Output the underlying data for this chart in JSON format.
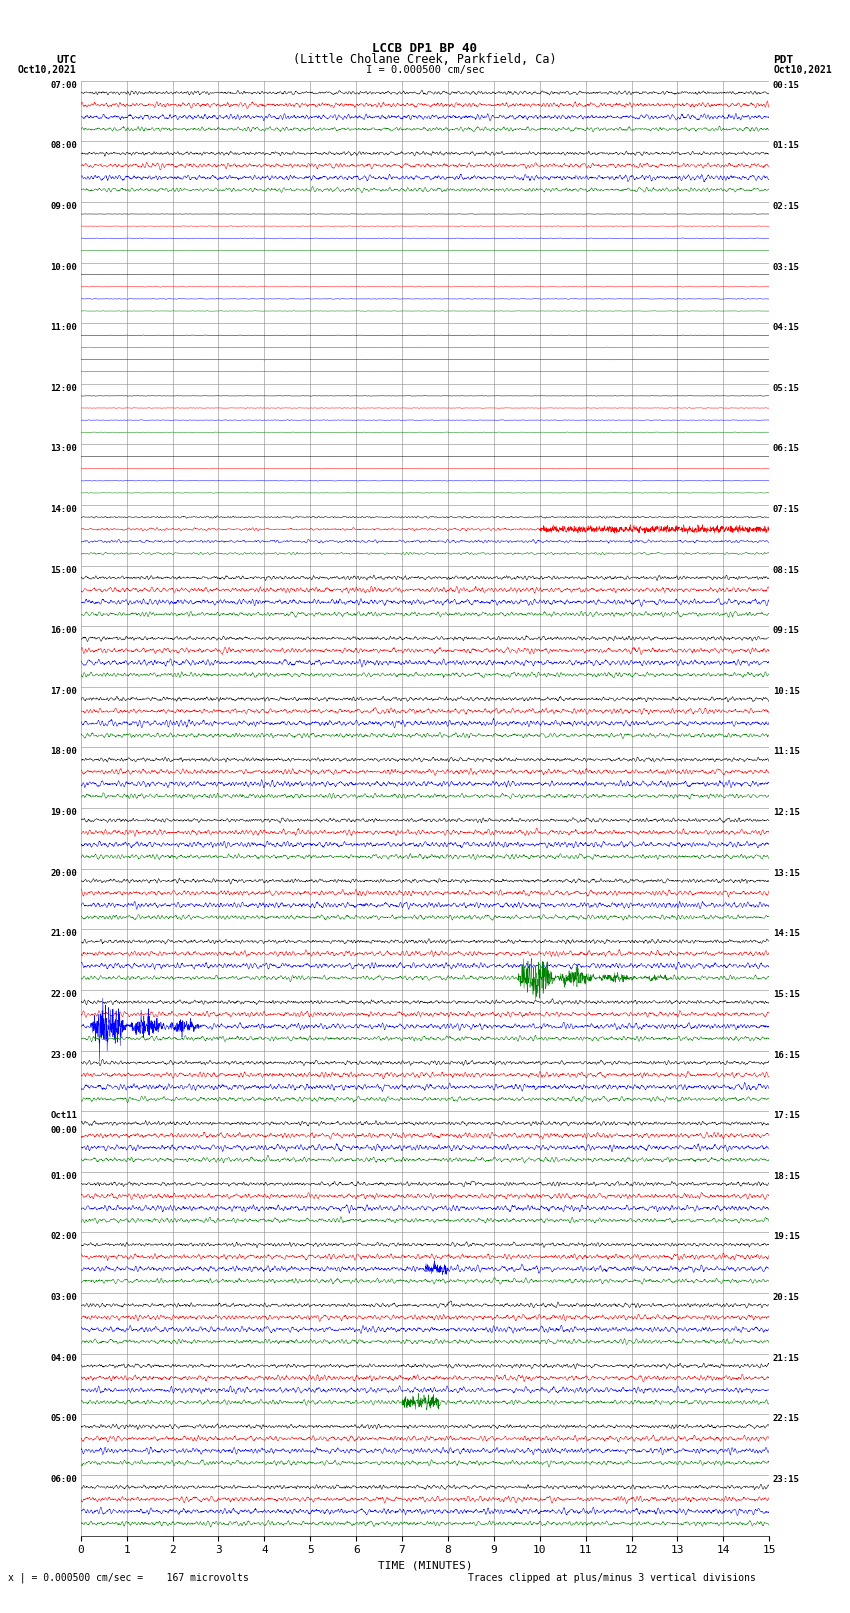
{
  "title_line1": "LCCB DP1 BP 40",
  "title_line2": "(Little Cholane Creek, Parkfield, Ca)",
  "scale_text": "I = 0.000500 cm/sec",
  "left_label_top": "UTC",
  "left_label_bot": "Oct10,2021",
  "right_label_top": "PDT",
  "right_label_bot": "Oct10,2021",
  "bottom_label": "TIME (MINUTES)",
  "footnote_left": "x | = 0.000500 cm/sec =    167 microvolts",
  "footnote_right": "Traces clipped at plus/minus 3 vertical divisions",
  "utc_times": [
    "07:00",
    "08:00",
    "09:00",
    "10:00",
    "11:00",
    "12:00",
    "13:00",
    "14:00",
    "15:00",
    "16:00",
    "17:00",
    "18:00",
    "19:00",
    "20:00",
    "21:00",
    "22:00",
    "23:00",
    "Oct11\n00:00",
    "01:00",
    "02:00",
    "03:00",
    "04:00",
    "05:00",
    "06:00"
  ],
  "pdt_times": [
    "00:15",
    "01:15",
    "02:15",
    "03:15",
    "04:15",
    "05:15",
    "06:15",
    "07:15",
    "08:15",
    "09:15",
    "10:15",
    "11:15",
    "12:15",
    "13:15",
    "14:15",
    "15:15",
    "16:15",
    "17:15",
    "18:15",
    "19:15",
    "20:15",
    "21:15",
    "22:15",
    "23:15"
  ],
  "bg_color": "#ffffff",
  "trace_colors": [
    "#000000",
    "#ff0000",
    "#0000ff",
    "#008000"
  ],
  "grid_color": "#888888",
  "num_rows": 24,
  "traces_per_row": 4,
  "minutes_per_row": 15,
  "x_ticks": [
    0,
    1,
    2,
    3,
    4,
    5,
    6,
    7,
    8,
    9,
    10,
    11,
    12,
    13,
    14,
    15
  ]
}
